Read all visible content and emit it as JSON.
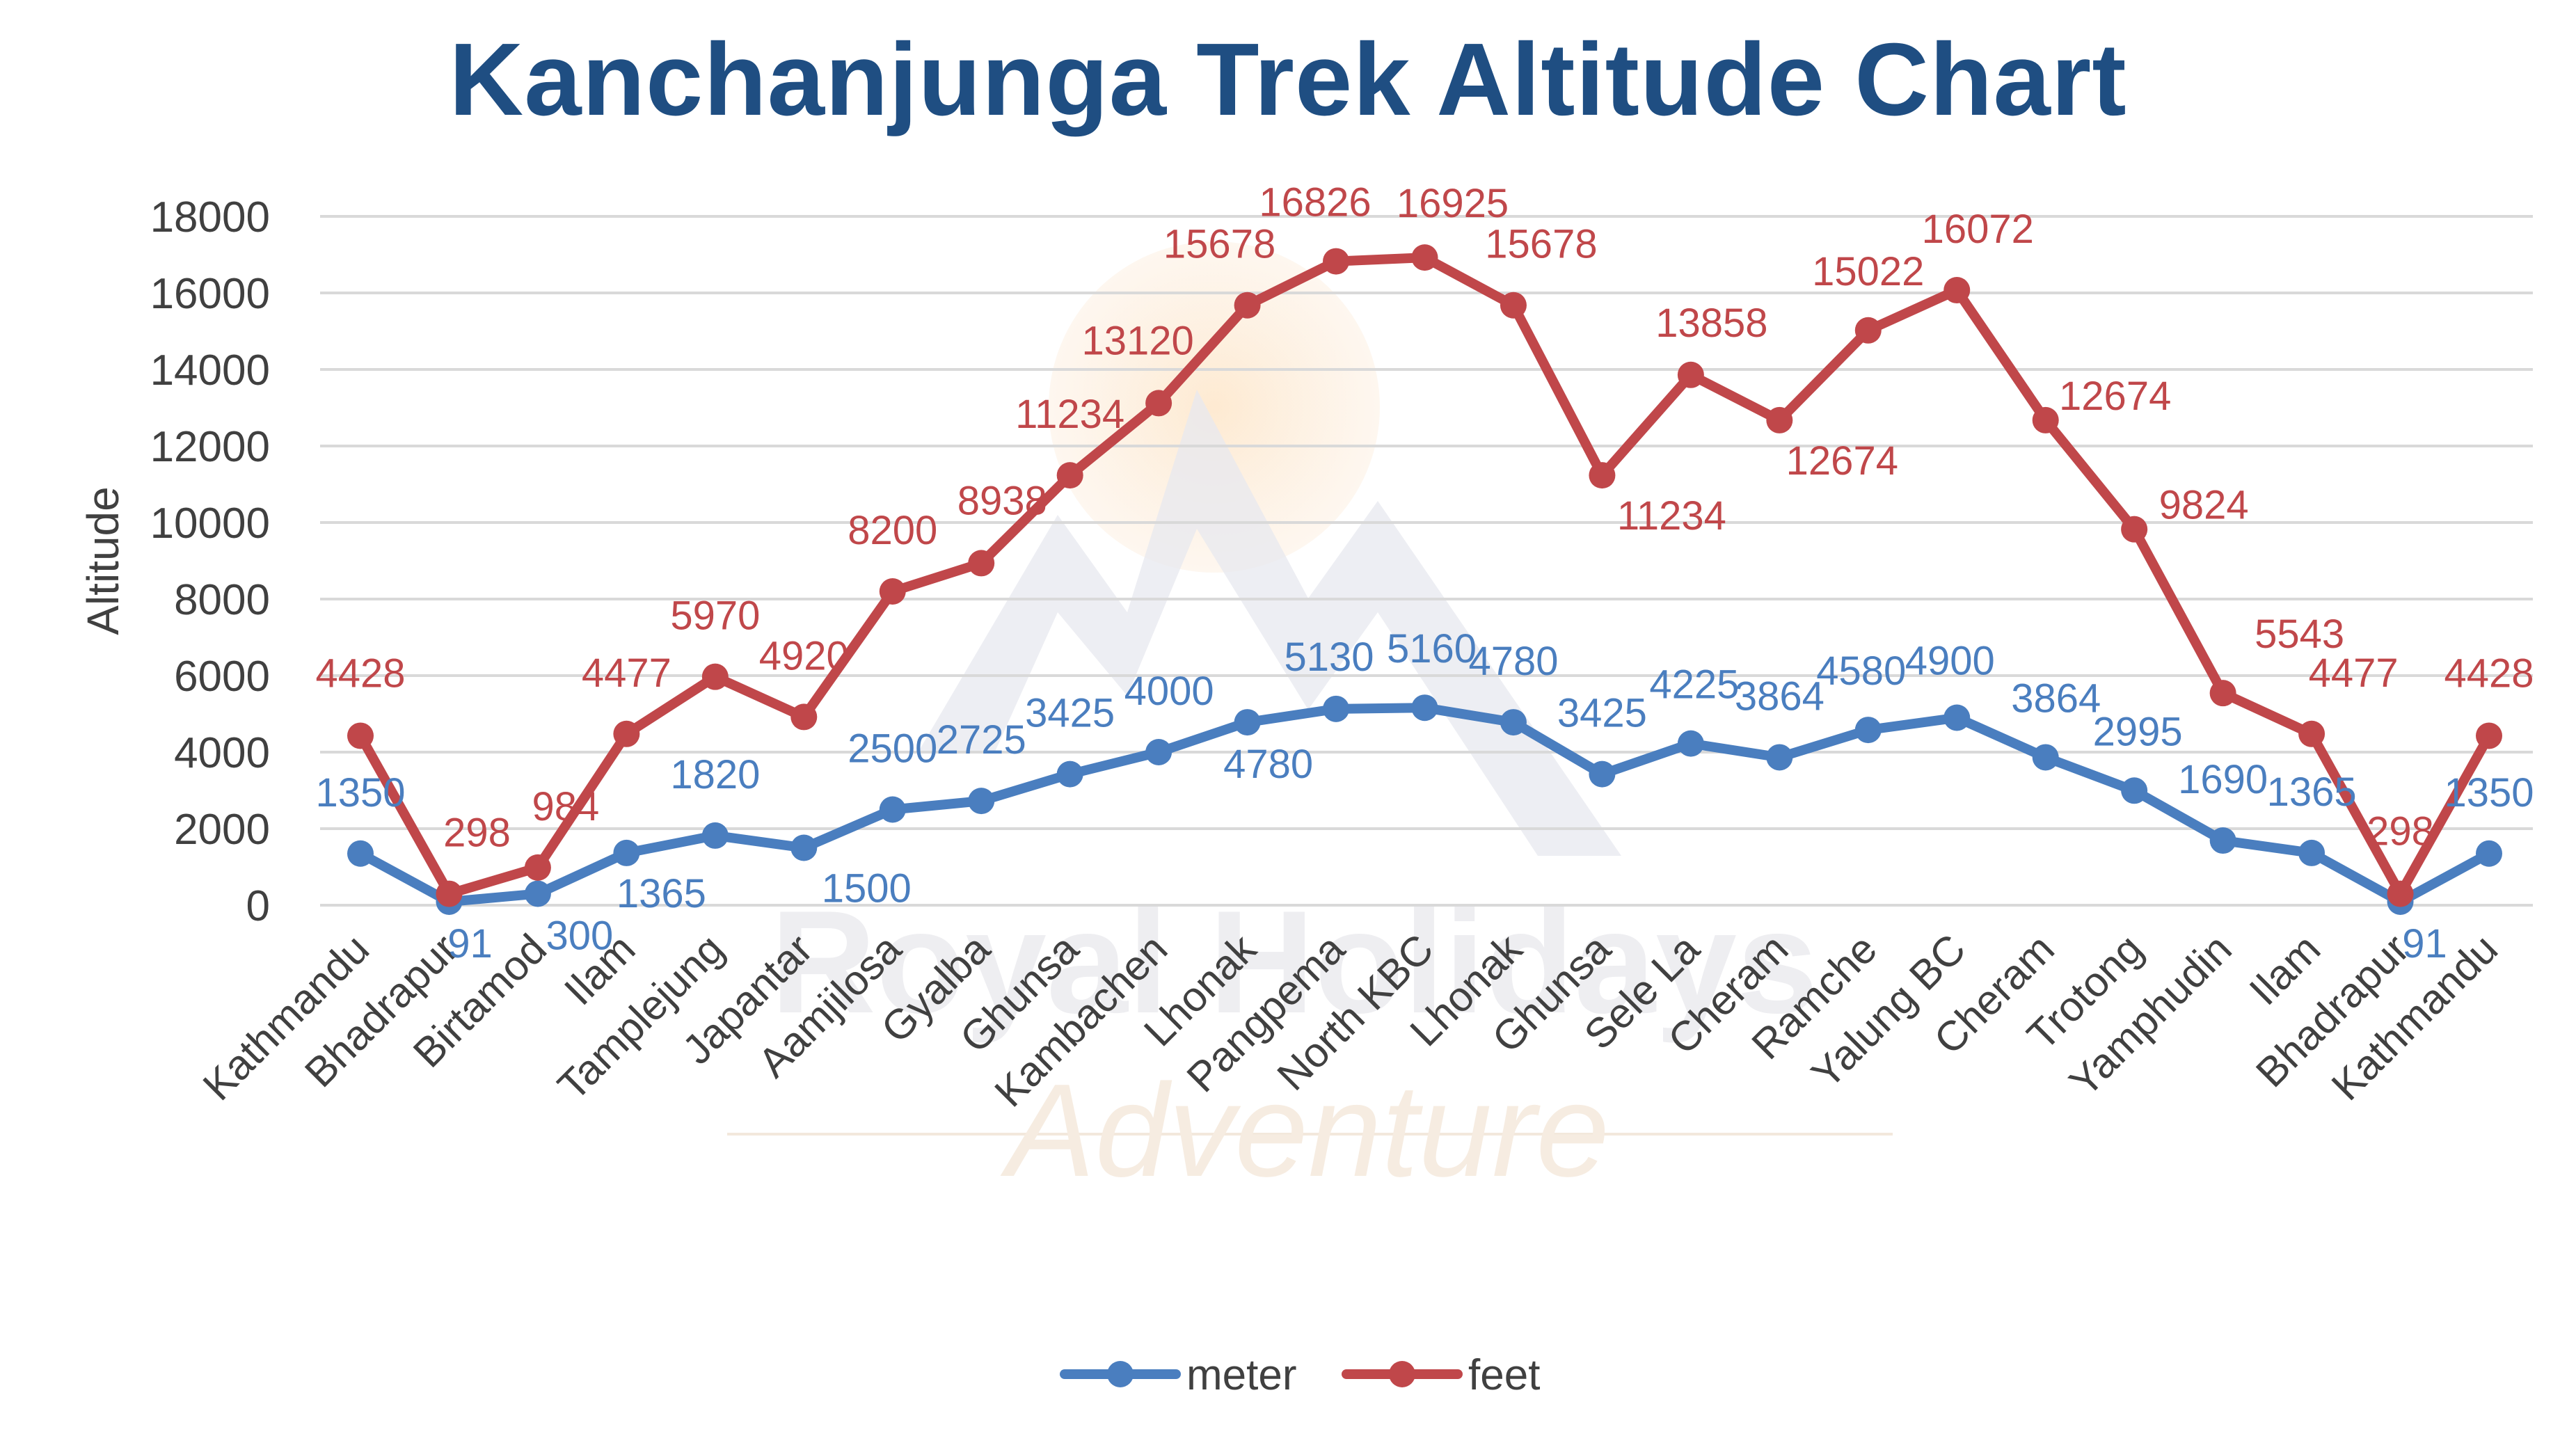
{
  "chart_data": {
    "type": "line",
    "title": "Kanchanjunga Trek Altitude Chart",
    "xlabel": "",
    "ylabel": "Altitude",
    "ylim": [
      0,
      18000
    ],
    "yticks": [
      0,
      2000,
      4000,
      6000,
      8000,
      10000,
      12000,
      14000,
      16000,
      18000
    ],
    "grid": true,
    "legend": "bottom-center",
    "categories": [
      "Kathmandu",
      "Bhadrapur",
      "Birtamod",
      "Ilam",
      "Tamplejung",
      "Japantar",
      "Aamjilosa",
      "Gyalba",
      "Ghunsa",
      "Kambachen",
      "Lhonak",
      "Pangpema",
      "North KBC",
      "Lhonak",
      "Ghunsa",
      "Sele La",
      "Cheram",
      "Ramche",
      "Yalung BC",
      "Cheram",
      "Trotong",
      "Yamphudin",
      "Ilam",
      "Bhadrapur",
      "Kathmandu"
    ],
    "series": [
      {
        "name": "meter",
        "color": "#4a7ebf",
        "values": [
          1350,
          91,
          300,
          1365,
          1820,
          1500,
          2500,
          2725,
          3425,
          4000,
          4780,
          5130,
          5160,
          4780,
          3425,
          4225,
          3864,
          4580,
          4900,
          3864,
          2995,
          1690,
          1365,
          91,
          1350
        ]
      },
      {
        "name": "feet",
        "color": "#c0474a",
        "values": [
          4428,
          298,
          984,
          4477,
          5970,
          4920,
          8200,
          8938,
          11234,
          13120,
          15678,
          16826,
          16925,
          15678,
          11234,
          13858,
          12674,
          15022,
          16072,
          12674,
          9824,
          5543,
          4477,
          298,
          4428
        ]
      }
    ]
  },
  "watermark": {
    "brand": "Royal Holidays",
    "tagline": "Adventure"
  }
}
